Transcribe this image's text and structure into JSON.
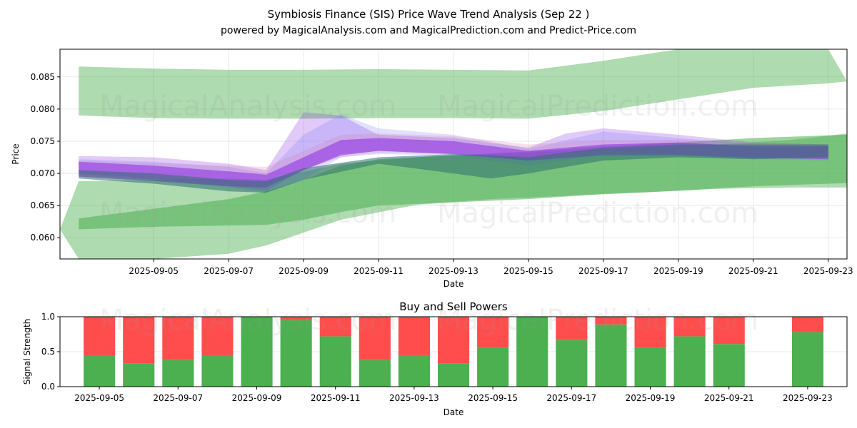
{
  "title": "Symbiosis Finance (SIS) Price Wave Trend Analysis (Sep 22 )",
  "subtitle": "powered by MagicalAnalysis.com and MagicalPrediction.com and Predict-Price.com",
  "watermarks": [
    "MagicalAnalysis.com",
    "MagicalPrediction.com"
  ],
  "chart_data": [
    {
      "type": "area",
      "title": "",
      "xlabel": "Date",
      "ylabel": "Price",
      "xlim": [
        "2025-09-02T12:00",
        "2025-09-23T12:00"
      ],
      "ylim": [
        0.0567,
        0.0893
      ],
      "x_ticks": [
        "2025-09-05",
        "2025-09-07",
        "2025-09-09",
        "2025-09-11",
        "2025-09-13",
        "2025-09-15",
        "2025-09-17",
        "2025-09-19",
        "2025-09-21",
        "2025-09-23"
      ],
      "y_ticks": [
        0.06,
        0.065,
        0.07,
        0.075,
        0.08,
        0.085
      ],
      "y_tick_labels": [
        "0.060",
        "0.065",
        "0.070",
        "0.075",
        "0.080",
        "0.085"
      ],
      "grid": true,
      "colors": {
        "green_band": "#4caf50",
        "purple_band": "#8a2be2",
        "blue_band": "#6a6aff",
        "pink_band": "#d97fb0",
        "teal_band": "#2f6f6f"
      },
      "bands": [
        {
          "color": "green_band",
          "opacity": 0.45,
          "x": [
            "2025-09-03",
            "2025-09-05",
            "2025-09-07",
            "2025-09-09",
            "2025-09-11",
            "2025-09-13",
            "2025-09-15",
            "2025-09-17",
            "2025-09-19",
            "2025-09-21",
            "2025-09-23",
            "2025-09-23T12:00"
          ],
          "upper": [
            0.0866,
            0.0863,
            0.0861,
            0.0861,
            0.0862,
            0.0861,
            0.086,
            0.0875,
            0.0893,
            0.0893,
            0.0893,
            0.0843
          ],
          "lower": [
            0.079,
            0.0786,
            0.0785,
            0.0785,
            0.0786,
            0.0786,
            0.0785,
            0.0797,
            0.0815,
            0.0833,
            0.084,
            0.0843
          ]
        },
        {
          "color": "green_band",
          "opacity": 0.45,
          "x": [
            "2025-09-02T12:00",
            "2025-09-03",
            "2025-09-05",
            "2025-09-07",
            "2025-09-08",
            "2025-09-10",
            "2025-09-12",
            "2025-09-14",
            "2025-09-16",
            "2025-09-18",
            "2025-09-20",
            "2025-09-22",
            "2025-09-23T12:00"
          ],
          "upper": [
            0.0613,
            0.0688,
            0.069,
            0.0692,
            0.069,
            0.0715,
            0.0725,
            0.073,
            0.0735,
            0.074,
            0.0745,
            0.0752,
            0.0762
          ],
          "lower": [
            0.0613,
            0.0567,
            0.0567,
            0.0575,
            0.0588,
            0.0628,
            0.0651,
            0.066,
            0.0665,
            0.067,
            0.0676,
            0.0678,
            0.0678
          ]
        },
        {
          "color": "green_band",
          "opacity": 0.55,
          "x": [
            "2025-09-03",
            "2025-09-05",
            "2025-09-07",
            "2025-09-08",
            "2025-09-09",
            "2025-09-10",
            "2025-09-11",
            "2025-09-13",
            "2025-09-15",
            "2025-09-17",
            "2025-09-19",
            "2025-09-21",
            "2025-09-23T12:00"
          ],
          "upper": [
            0.063,
            0.0645,
            0.066,
            0.0672,
            0.069,
            0.0712,
            0.0722,
            0.0728,
            0.0734,
            0.0742,
            0.0748,
            0.0755,
            0.076
          ],
          "lower": [
            0.0613,
            0.0617,
            0.0619,
            0.062,
            0.0628,
            0.064,
            0.065,
            0.0655,
            0.066,
            0.0668,
            0.0673,
            0.068,
            0.0685
          ]
        },
        {
          "color": "purple_band",
          "opacity": 0.25,
          "x": [
            "2025-09-03",
            "2025-09-05",
            "2025-09-07",
            "2025-09-08",
            "2025-09-09",
            "2025-09-10",
            "2025-09-11",
            "2025-09-13",
            "2025-09-15",
            "2025-09-16",
            "2025-09-17",
            "2025-09-19",
            "2025-09-21",
            "2025-09-23"
          ],
          "upper": [
            0.0727,
            0.0725,
            0.0715,
            0.0705,
            0.0795,
            0.079,
            0.076,
            0.0755,
            0.074,
            0.0762,
            0.077,
            0.076,
            0.0748,
            0.0745
          ],
          "lower": [
            0.07,
            0.0692,
            0.068,
            0.0673,
            0.0705,
            0.073,
            0.0735,
            0.073,
            0.072,
            0.0732,
            0.0735,
            0.073,
            0.0725,
            0.0725
          ]
        },
        {
          "color": "blue_band",
          "opacity": 0.2,
          "x": [
            "2025-09-03",
            "2025-09-05",
            "2025-09-07",
            "2025-09-08",
            "2025-09-09",
            "2025-09-10",
            "2025-09-11",
            "2025-09-13",
            "2025-09-15",
            "2025-09-17",
            "2025-09-19",
            "2025-09-21",
            "2025-09-23"
          ],
          "upper": [
            0.0722,
            0.0718,
            0.071,
            0.07,
            0.076,
            0.0792,
            0.077,
            0.076,
            0.0738,
            0.0765,
            0.0755,
            0.0745,
            0.0742
          ],
          "lower": [
            0.0698,
            0.069,
            0.0678,
            0.067,
            0.069,
            0.0725,
            0.073,
            0.0728,
            0.0712,
            0.073,
            0.0728,
            0.0722,
            0.072
          ]
        },
        {
          "color": "pink_band",
          "opacity": 0.25,
          "x": [
            "2025-09-03",
            "2025-09-05",
            "2025-09-07",
            "2025-09-08",
            "2025-09-09",
            "2025-09-10",
            "2025-09-11",
            "2025-09-13",
            "2025-09-15",
            "2025-09-17",
            "2025-09-19",
            "2025-09-21",
            "2025-09-23"
          ],
          "upper": [
            0.072,
            0.0716,
            0.0712,
            0.071,
            0.0735,
            0.076,
            0.0762,
            0.0758,
            0.0745,
            0.0752,
            0.0752,
            0.0746,
            0.0745
          ],
          "lower": [
            0.0695,
            0.069,
            0.0683,
            0.0682,
            0.0705,
            0.0725,
            0.0732,
            0.073,
            0.0722,
            0.0732,
            0.073,
            0.0726,
            0.0725
          ]
        },
        {
          "color": "purple_band",
          "opacity": 0.55,
          "x": [
            "2025-09-03",
            "2025-09-05",
            "2025-09-07",
            "2025-09-08",
            "2025-09-09",
            "2025-09-10",
            "2025-09-11",
            "2025-09-13",
            "2025-09-15",
            "2025-09-17",
            "2025-09-19",
            "2025-09-21",
            "2025-09-23"
          ],
          "upper": [
            0.0718,
            0.0712,
            0.0703,
            0.0698,
            0.0725,
            0.0752,
            0.0755,
            0.075,
            0.0735,
            0.0745,
            0.0748,
            0.0742,
            0.0742
          ],
          "lower": [
            0.0695,
            0.0688,
            0.068,
            0.0678,
            0.0705,
            0.0728,
            0.0735,
            0.073,
            0.072,
            0.0728,
            0.0728,
            0.0724,
            0.0722
          ]
        },
        {
          "color": "teal_band",
          "opacity": 0.55,
          "x": [
            "2025-09-03",
            "2025-09-05",
            "2025-09-07",
            "2025-09-08",
            "2025-09-09",
            "2025-09-11",
            "2025-09-13",
            "2025-09-14",
            "2025-09-15",
            "2025-09-17",
            "2025-09-19",
            "2025-09-21",
            "2025-09-23"
          ],
          "upper": [
            0.0705,
            0.07,
            0.069,
            0.0688,
            0.0708,
            0.0725,
            0.073,
            0.0728,
            0.0725,
            0.074,
            0.0745,
            0.0745,
            0.0745
          ],
          "lower": [
            0.0692,
            0.0684,
            0.0672,
            0.067,
            0.069,
            0.0715,
            0.07,
            0.0692,
            0.07,
            0.072,
            0.0725,
            0.0722,
            0.0725
          ]
        }
      ]
    },
    {
      "type": "bar",
      "title": "Buy and Sell Powers",
      "xlabel": "Date",
      "ylabel": "Signal Strength",
      "xlim": [
        "2025-09-04",
        "2025-09-24"
      ],
      "ylim": [
        0,
        1.0
      ],
      "y_ticks": [
        0.0,
        0.5,
        1.0
      ],
      "y_tick_labels": [
        "0.0",
        "0.5",
        "1.0"
      ],
      "x_ticks": [
        "2025-09-05",
        "2025-09-07",
        "2025-09-09",
        "2025-09-11",
        "2025-09-13",
        "2025-09-15",
        "2025-09-17",
        "2025-09-19",
        "2025-09-21",
        "2025-09-23"
      ],
      "colors": {
        "buy": "#4caf50",
        "sell": "#ff4d4d"
      },
      "categories": [
        "2025-09-05",
        "2025-09-06",
        "2025-09-07",
        "2025-09-08",
        "2025-09-09",
        "2025-09-10",
        "2025-09-11",
        "2025-09-12",
        "2025-09-13",
        "2025-09-14",
        "2025-09-15",
        "2025-09-16",
        "2025-09-17",
        "2025-09-18",
        "2025-09-19",
        "2025-09-20",
        "2025-09-21",
        "2025-09-23"
      ],
      "series": [
        {
          "name": "buy",
          "values": [
            0.45,
            0.33,
            0.38,
            0.45,
            1.0,
            0.95,
            0.72,
            0.38,
            0.45,
            0.33,
            0.56,
            1.0,
            0.67,
            0.89,
            0.56,
            0.72,
            0.61,
            0.78
          ]
        },
        {
          "name": "sell",
          "values": [
            0.55,
            0.67,
            0.62,
            0.55,
            0.0,
            0.05,
            0.28,
            0.62,
            0.55,
            0.67,
            0.44,
            0.0,
            0.33,
            0.11,
            0.44,
            0.28,
            0.39,
            0.22
          ]
        }
      ]
    }
  ]
}
